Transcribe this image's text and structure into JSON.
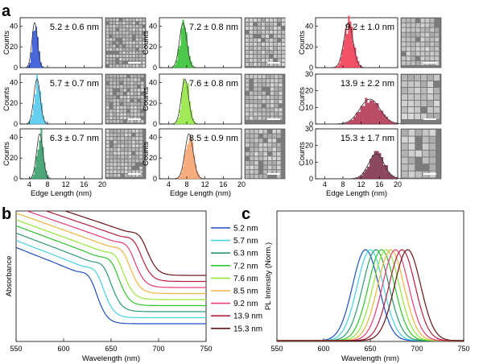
{
  "figure": {
    "panel_letters": [
      "a",
      "b",
      "c"
    ]
  },
  "chart_data": [
    {
      "type": "bar",
      "panel": "a",
      "xlabel": "Edge Length (nm)",
      "ylabel": "Counts",
      "xticks": [
        4,
        8,
        12,
        16,
        20
      ],
      "xlim": [
        2,
        20
      ],
      "histograms": [
        {
          "label": "5.2 ± 0.6 nm",
          "mean": 5.2,
          "sd": 0.6,
          "ylim": [
            0,
            48
          ],
          "yticks": [
            0,
            20,
            40
          ],
          "color": "#2a4fd6",
          "column": 0,
          "row": 0
        },
        {
          "label": "5.7 ± 0.7 nm",
          "mean": 5.7,
          "sd": 0.7,
          "ylim": [
            0,
            48
          ],
          "yticks": [
            0,
            20,
            40
          ],
          "color": "#4cc8ec",
          "column": 0,
          "row": 1
        },
        {
          "label": "6.3 ± 0.7 nm",
          "mean": 6.3,
          "sd": 0.7,
          "ylim": [
            0,
            48
          ],
          "yticks": [
            0,
            20,
            40
          ],
          "color": "#2f9a63",
          "column": 0,
          "row": 2
        },
        {
          "label": "7.2 ± 0.8 nm",
          "mean": 7.2,
          "sd": 0.8,
          "ylim": [
            0,
            48
          ],
          "yticks": [
            0,
            20,
            40
          ],
          "color": "#31c02f",
          "column": 1,
          "row": 0
        },
        {
          "label": "7.6 ± 0.8 nm",
          "mean": 7.6,
          "sd": 0.8,
          "ylim": [
            0,
            48
          ],
          "yticks": [
            0,
            20,
            40
          ],
          "color": "#8fe63a",
          "column": 1,
          "row": 1
        },
        {
          "label": "8.5 ± 0.9 nm",
          "mean": 8.5,
          "sd": 0.9,
          "ylim": [
            0,
            48
          ],
          "yticks": [
            0,
            20,
            40
          ],
          "color": "#f6a06a",
          "column": 1,
          "row": 2
        },
        {
          "label": "9.2 ± 1.0 nm",
          "mean": 9.2,
          "sd": 1.0,
          "ylim": [
            0,
            48
          ],
          "yticks": [
            0,
            20,
            40
          ],
          "color": "#f0364f",
          "column": 2,
          "row": 0
        },
        {
          "label": "13.9 ± 2.2 nm",
          "mean": 13.9,
          "sd": 2.2,
          "ylim": [
            0,
            30
          ],
          "yticks": [
            0,
            10,
            20,
            30
          ],
          "color": "#b0304c",
          "column": 2,
          "row": 1
        },
        {
          "label": "15.3 ± 1.7 nm",
          "mean": 15.3,
          "sd": 1.7,
          "ylim": [
            0,
            30
          ],
          "yticks": [
            0,
            10,
            20,
            30
          ],
          "color": "#7a2a44",
          "column": 2,
          "row": 2
        }
      ]
    },
    {
      "type": "line",
      "panel": "b",
      "xlabel": "Wavelength (nm)",
      "ylabel": "Absorbance",
      "xlim": [
        550,
        750
      ],
      "xticks": [
        550,
        600,
        650,
        700,
        750
      ],
      "legend_position": "right",
      "series": [
        {
          "name": "5.2 nm",
          "color": "#1f4fbf",
          "edge": 635
        },
        {
          "name": "5.7 nm",
          "color": "#44d2e6",
          "edge": 642
        },
        {
          "name": "6.3 nm",
          "color": "#2b9a6a",
          "edge": 650
        },
        {
          "name": "7.2 nm",
          "color": "#2ec42e",
          "edge": 658
        },
        {
          "name": "7.6 nm",
          "color": "#93e83a",
          "edge": 663
        },
        {
          "name": "8.5 nm",
          "color": "#f2b440",
          "edge": 670
        },
        {
          "name": "9.2 nm",
          "color": "#e53d7a",
          "edge": 675
        },
        {
          "name": "13.9 nm",
          "color": "#b52040",
          "edge": 682
        },
        {
          "name": "15.3 nm",
          "color": "#6a1414",
          "edge": 688
        }
      ]
    },
    {
      "type": "line",
      "panel": "c",
      "xlabel": "Wavelength (nm)",
      "ylabel": "PL Intensity (Norm.)",
      "xlim": [
        550,
        750
      ],
      "xticks": [
        550,
        600,
        650,
        700,
        750
      ],
      "series": [
        {
          "name": "5.2 nm",
          "color": "#1f4fbf",
          "peak": 645
        },
        {
          "name": "5.7 nm",
          "color": "#44d2e6",
          "peak": 650
        },
        {
          "name": "6.3 nm",
          "color": "#2b9a6a",
          "peak": 656
        },
        {
          "name": "7.2 nm",
          "color": "#2ec42e",
          "peak": 662
        },
        {
          "name": "7.6 nm",
          "color": "#93e83a",
          "peak": 667
        },
        {
          "name": "8.5 nm",
          "color": "#f2b440",
          "peak": 672
        },
        {
          "name": "9.2 nm",
          "color": "#e53d7a",
          "peak": 677
        },
        {
          "name": "13.9 nm",
          "color": "#b52040",
          "peak": 684
        },
        {
          "name": "15.3 nm",
          "color": "#6a1414",
          "peak": 690
        }
      ]
    }
  ]
}
